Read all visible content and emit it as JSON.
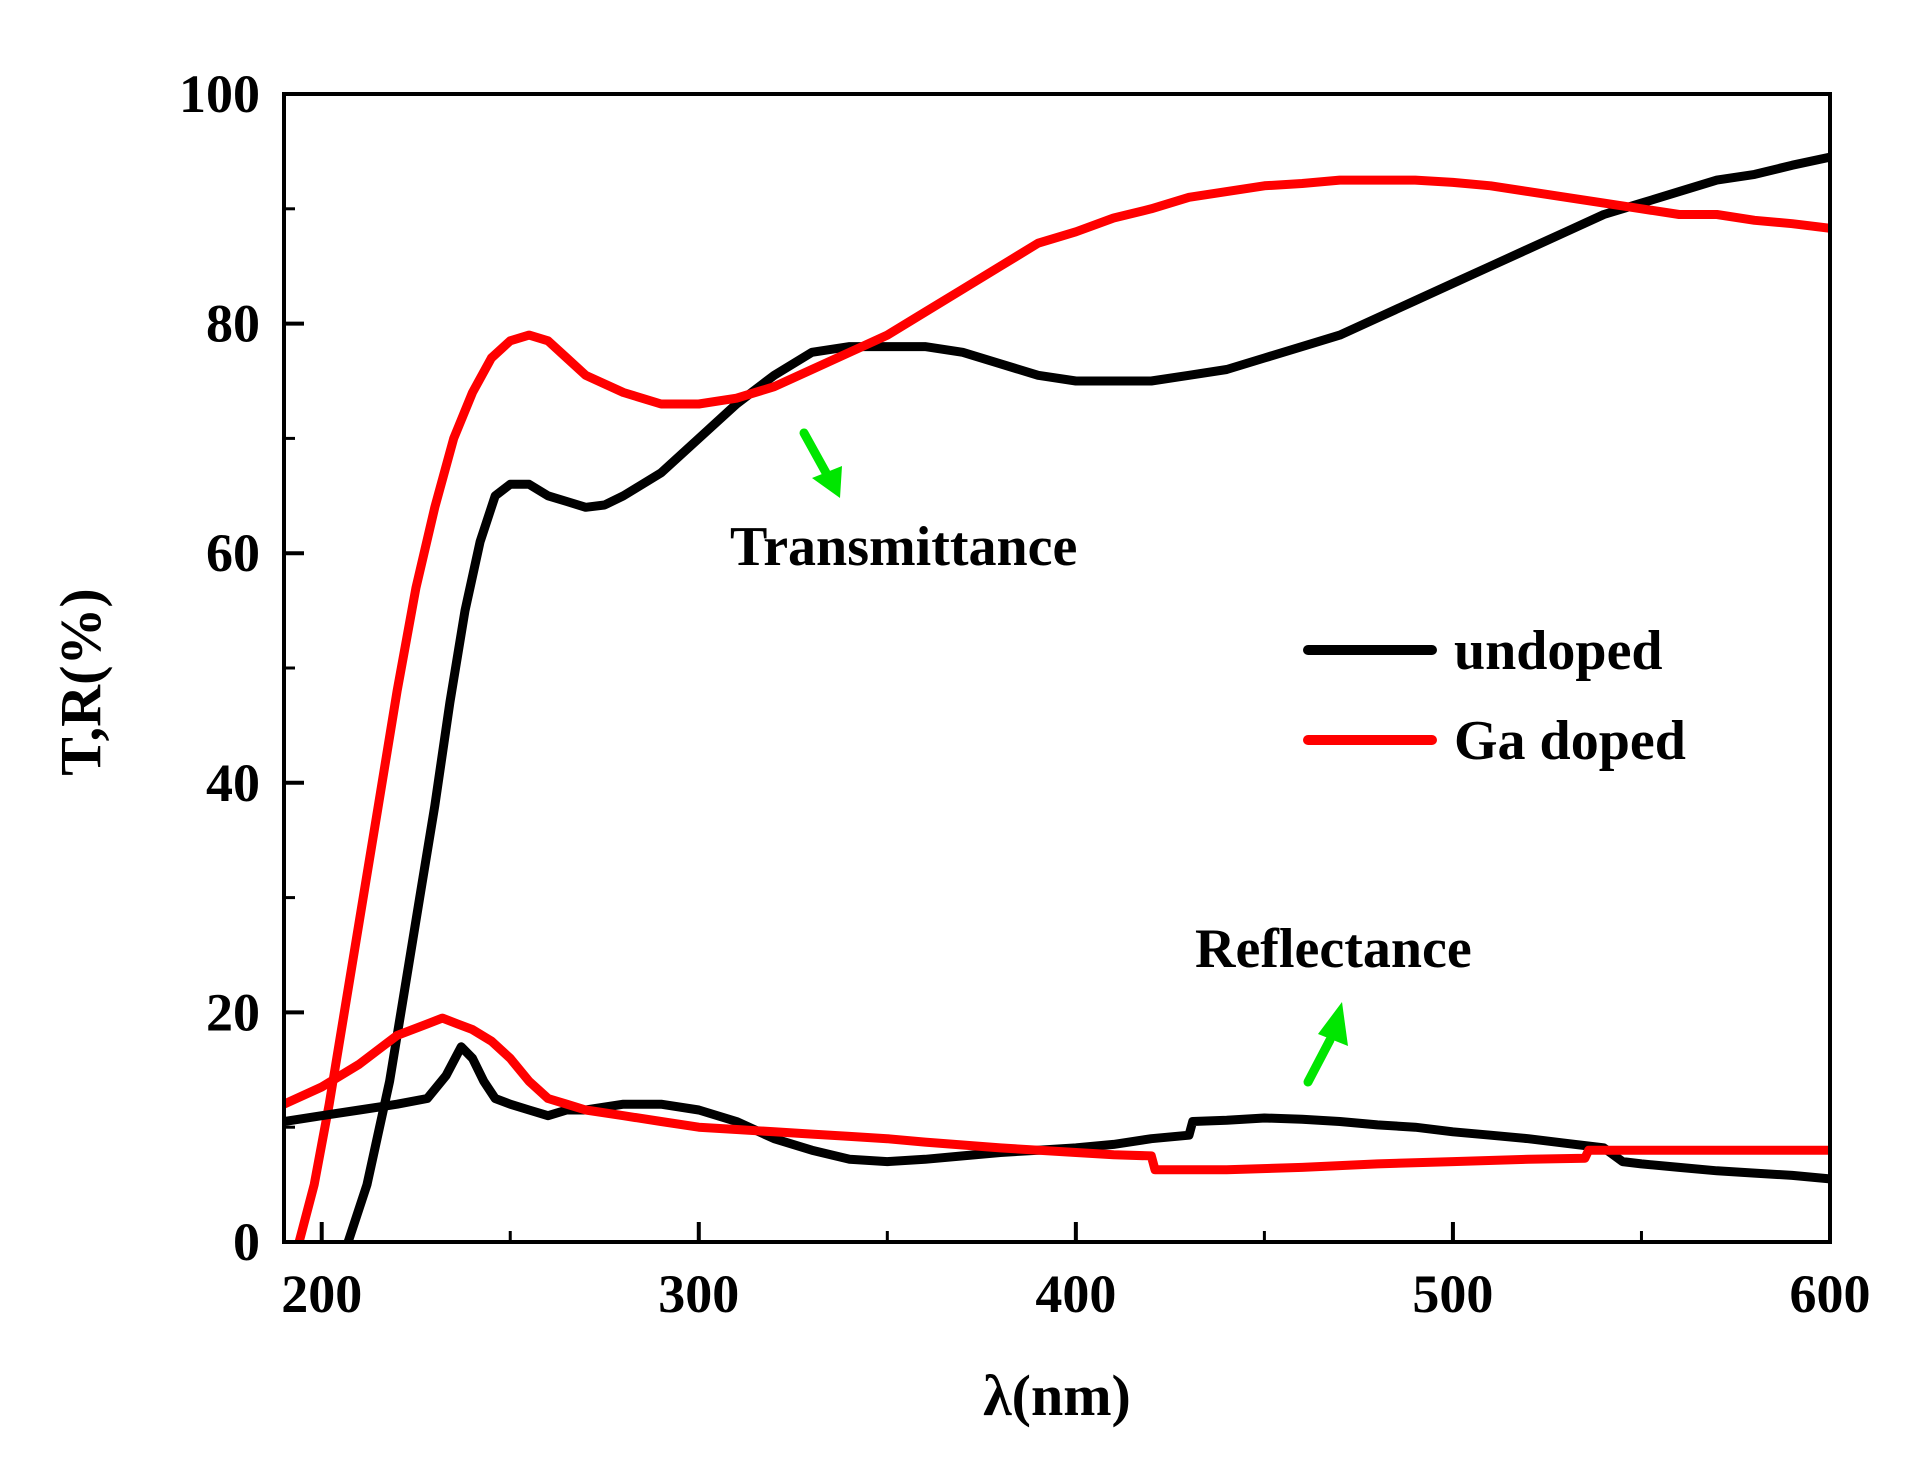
{
  "chart_data": {
    "type": "line",
    "title": "",
    "xlabel": "λ(nm)",
    "ylabel": "T,R(%)",
    "xlim": [
      190,
      600
    ],
    "ylim": [
      0,
      100
    ],
    "xticks": [
      200,
      300,
      400,
      500,
      600
    ],
    "yticks": [
      0,
      20,
      40,
      60,
      80,
      100
    ],
    "xtick_labels": [
      "200",
      "300",
      "400",
      "500",
      "600"
    ],
    "ytick_labels": [
      "0",
      "20",
      "40",
      "60",
      "80",
      "100"
    ],
    "grid": false,
    "legend": {
      "position": "right-middle",
      "entries": [
        {
          "label": "undoped",
          "color": "#000000"
        },
        {
          "label": "Ga doped",
          "color": "#ff0000"
        }
      ]
    },
    "annotations": [
      {
        "text": "Transmittance",
        "arrow_color": "#00ff00"
      },
      {
        "text": "Reflectance",
        "arrow_color": "#00ff00"
      }
    ],
    "series": [
      {
        "name": "undoped",
        "kind": "transmittance",
        "color": "#000000",
        "x": [
          207,
          212,
          218,
          222,
          226,
          230,
          234,
          238,
          242,
          246,
          250,
          255,
          260,
          265,
          270,
          275,
          280,
          290,
          300,
          310,
          320,
          330,
          340,
          350,
          360,
          370,
          380,
          390,
          400,
          410,
          420,
          430,
          440,
          450,
          460,
          470,
          480,
          490,
          500,
          510,
          520,
          530,
          540,
          550,
          560,
          570,
          580,
          590,
          600
        ],
        "values": [
          0,
          5,
          14,
          22,
          30,
          38,
          47,
          55,
          61,
          65,
          66,
          66,
          65,
          64.5,
          64,
          64.2,
          65,
          67,
          70,
          73,
          75.5,
          77.5,
          78,
          78,
          78,
          77.5,
          76.5,
          75.5,
          75,
          75,
          75,
          75.5,
          76,
          77,
          78,
          79,
          80.5,
          82,
          83.5,
          85,
          86.5,
          88,
          89.5,
          90.5,
          91.5,
          92.5,
          93,
          93.8,
          94.5
        ]
      },
      {
        "name": "Ga doped",
        "kind": "transmittance",
        "color": "#ff0000",
        "x": [
          194,
          198,
          202,
          206,
          210,
          215,
          220,
          225,
          230,
          235,
          240,
          245,
          250,
          255,
          260,
          265,
          270,
          280,
          290,
          300,
          310,
          320,
          330,
          340,
          350,
          360,
          370,
          380,
          390,
          400,
          410,
          420,
          430,
          440,
          450,
          460,
          470,
          480,
          490,
          500,
          510,
          520,
          530,
          540,
          550,
          560,
          570,
          580,
          590,
          600
        ],
        "values": [
          0,
          5,
          12,
          20,
          28,
          38,
          48,
          57,
          64,
          70,
          74,
          77,
          78.5,
          79,
          78.5,
          77,
          75.5,
          74,
          73,
          73,
          73.5,
          74.5,
          76,
          77.5,
          79,
          81,
          83,
          85,
          87,
          88,
          89.2,
          90,
          91,
          91.5,
          92,
          92.2,
          92.5,
          92.5,
          92.5,
          92.3,
          92,
          91.5,
          91,
          90.5,
          90,
          89.5,
          89.5,
          89,
          88.7,
          88.3
        ]
      },
      {
        "name": "undoped",
        "kind": "reflectance",
        "color": "#000000",
        "x": [
          190,
          200,
          210,
          220,
          228,
          233,
          237,
          240,
          243,
          246,
          250,
          255,
          260,
          265,
          270,
          280,
          290,
          300,
          310,
          320,
          330,
          340,
          350,
          360,
          370,
          380,
          390,
          400,
          410,
          420,
          430,
          431,
          440,
          450,
          460,
          470,
          480,
          490,
          500,
          510,
          520,
          530,
          540,
          545,
          550,
          560,
          570,
          580,
          590,
          600
        ],
        "values": [
          10.5,
          11,
          11.5,
          12,
          12.5,
          14.5,
          17,
          16,
          14,
          12.5,
          12,
          11.5,
          11,
          11.5,
          11.5,
          12,
          12,
          11.5,
          10.5,
          9,
          8,
          7.2,
          7,
          7.2,
          7.5,
          7.8,
          8,
          8.2,
          8.5,
          9,
          9.3,
          10.5,
          10.6,
          10.8,
          10.7,
          10.5,
          10.2,
          10,
          9.6,
          9.3,
          9,
          8.6,
          8.2,
          7,
          6.8,
          6.5,
          6.2,
          6,
          5.8,
          5.5
        ]
      },
      {
        "name": "Ga doped",
        "kind": "reflectance",
        "color": "#ff0000",
        "x": [
          190,
          200,
          210,
          220,
          228,
          232,
          236,
          240,
          245,
          250,
          255,
          260,
          265,
          270,
          280,
          290,
          300,
          310,
          320,
          330,
          340,
          350,
          360,
          380,
          400,
          410,
          420,
          421,
          440,
          460,
          480,
          500,
          520,
          535,
          536,
          550,
          570,
          600
        ],
        "values": [
          12,
          13.5,
          15.5,
          18,
          19,
          19.5,
          19,
          18.5,
          17.5,
          16,
          14,
          12.5,
          12,
          11.5,
          11,
          10.5,
          10,
          9.8,
          9.6,
          9.4,
          9.2,
          9,
          8.7,
          8.2,
          7.8,
          7.6,
          7.5,
          6.3,
          6.3,
          6.5,
          6.8,
          7,
          7.2,
          7.3,
          8,
          8,
          8,
          8
        ]
      }
    ]
  }
}
